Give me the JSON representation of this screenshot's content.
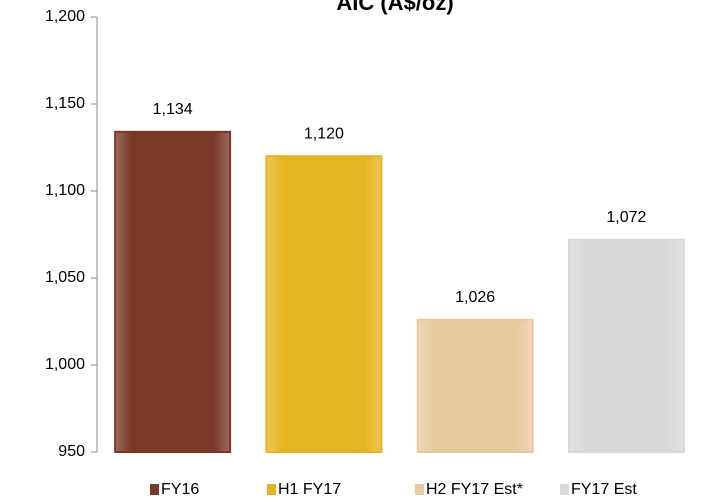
{
  "chart_data": {
    "type": "bar",
    "title": "AIC (A$/oz)",
    "categories": [
      "FY16",
      "H1 FY17",
      "H2 FY17 Est*",
      "FY17 Est"
    ],
    "values": [
      1134,
      1120,
      1026,
      1072
    ],
    "value_labels": [
      "1,134",
      "1,120",
      "1,026",
      "1,072"
    ],
    "colors": [
      "#7a3826",
      "#e6b421",
      "#e8c9a0",
      "#d8d8d8"
    ],
    "ylim": [
      950,
      1200
    ],
    "yticks": [
      {
        "value": 950,
        "label": "950"
      },
      {
        "value": 1000,
        "label": "1,000"
      },
      {
        "value": 1050,
        "label": "1,050"
      },
      {
        "value": 1100,
        "label": "1,100"
      },
      {
        "value": 1150,
        "label": "1,150"
      },
      {
        "value": 1200,
        "label": "1,200"
      }
    ],
    "legend": "bottom"
  }
}
